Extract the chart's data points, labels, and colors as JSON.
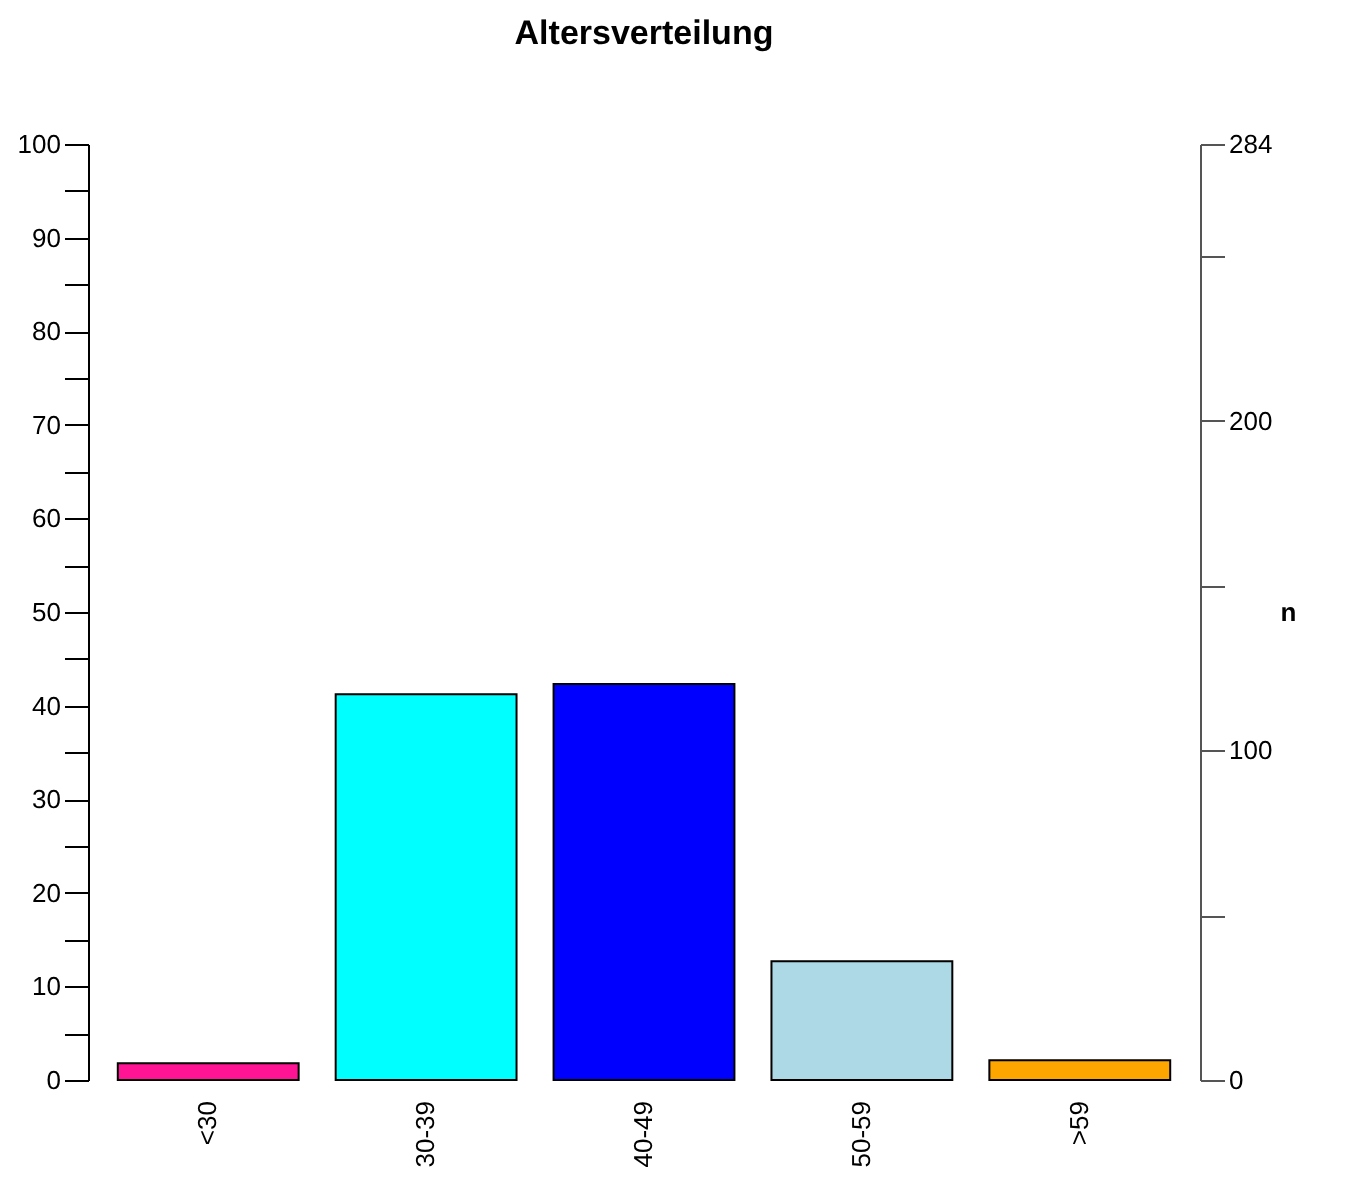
{
  "chart_data": {
    "type": "bar",
    "title": "Altersverteilung",
    "y2label": "n",
    "categories": [
      "<30",
      "30-39",
      "40-49",
      "50-59",
      ">59"
    ],
    "values": [
      1.8,
      41.2,
      42.3,
      12.7,
      2.1
    ],
    "colors": [
      "#ff1493",
      "#00ffff",
      "#0000ff",
      "#add8e6",
      "#ffa500"
    ],
    "ylim": [
      0,
      100
    ],
    "yticks": [
      0,
      {
        "value": 5,
        "label": null
      },
      10,
      {
        "value": 15,
        "label": null
      },
      20,
      {
        "value": 25,
        "label": null
      },
      30,
      {
        "value": 35,
        "label": null
      },
      40,
      {
        "value": 45,
        "label": null
      },
      50,
      {
        "value": 55,
        "label": null
      },
      60,
      {
        "value": 65,
        "label": null
      },
      70,
      {
        "value": 75,
        "label": null
      },
      80,
      {
        "value": 85,
        "label": null
      },
      90,
      {
        "value": 95,
        "label": null
      },
      100
    ],
    "y2lim": [
      0,
      284
    ],
    "y2ticks": [
      0,
      {
        "value": 50,
        "label": null
      },
      100,
      {
        "value": 150,
        "label": null
      },
      200,
      {
        "value": 250,
        "label": null
      },
      284
    ],
    "grid": false,
    "legend": false
  }
}
